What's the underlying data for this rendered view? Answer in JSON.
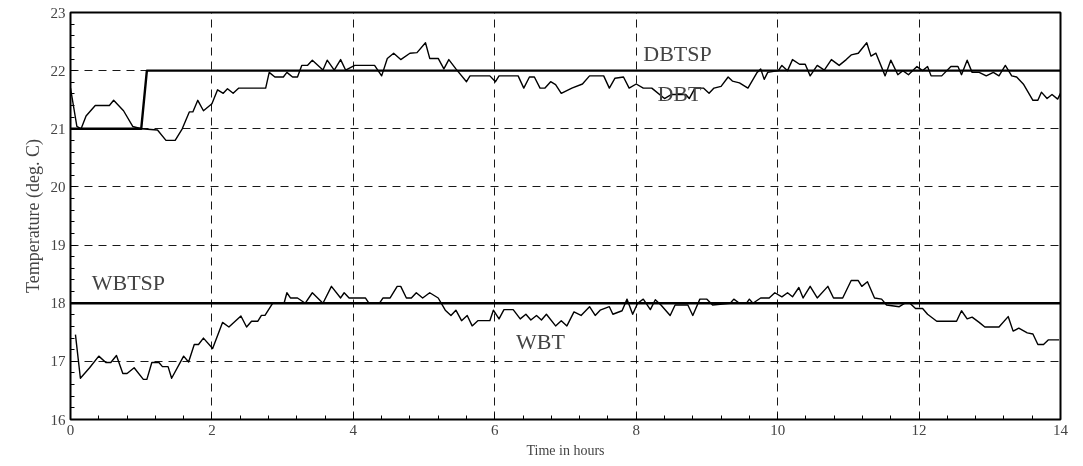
{
  "chart_data": {
    "type": "line",
    "xlabel": "Time in hours",
    "ylabel": "Temperature (deg. C)",
    "xlim": [
      0,
      14
    ],
    "ylim": [
      16,
      23
    ],
    "xticks": [
      0,
      2,
      4,
      6,
      8,
      10,
      12,
      14
    ],
    "yticks": [
      16,
      17,
      18,
      19,
      20,
      21,
      22,
      23
    ],
    "grid": true,
    "marker": "none",
    "line_style": "solid",
    "series": [
      {
        "name": "DBT",
        "color": "#000000",
        "x": [
          0,
          0.09,
          0.15,
          0.22,
          0.35,
          0.55,
          0.61,
          0.75,
          0.88,
          1.0,
          1.23,
          1.35,
          1.48,
          1.58,
          1.68,
          1.73,
          1.8,
          1.88,
          2.0,
          2.08,
          2.16,
          2.22,
          2.3,
          2.38,
          2.76,
          2.81,
          2.89,
          3.01,
          3.06,
          3.14,
          3.21,
          3.27,
          3.35,
          3.42,
          3.57,
          3.63,
          3.73,
          3.82,
          3.89,
          4.02,
          4.3,
          4.4,
          4.48,
          4.57,
          4.67,
          4.8,
          4.9,
          5.02,
          5.08,
          5.2,
          5.28,
          5.35,
          5.45,
          5.6,
          5.65,
          5.93,
          6.01,
          6.06,
          6.33,
          6.41,
          6.49,
          6.56,
          6.64,
          6.71,
          6.79,
          6.86,
          6.94,
          7.09,
          7.24,
          7.34,
          7.54,
          7.62,
          7.7,
          7.82,
          7.9,
          8.0,
          8.1,
          8.22,
          8.4,
          8.5,
          8.7,
          8.75,
          8.83,
          8.95,
          9.03,
          9.1,
          9.2,
          9.3,
          9.36,
          9.46,
          9.58,
          9.71,
          9.76,
          9.81,
          9.86,
          10.01,
          10.06,
          10.14,
          10.21,
          10.31,
          10.39,
          10.46,
          10.56,
          10.66,
          10.76,
          10.87,
          10.97,
          11.04,
          11.14,
          11.26,
          11.32,
          11.39,
          11.52,
          11.6,
          11.7,
          11.77,
          11.85,
          11.97,
          12.05,
          12.12,
          12.17,
          12.32,
          12.45,
          12.55,
          12.6,
          12.68,
          12.75,
          12.85,
          12.95,
          13.05,
          13.13,
          13.22,
          13.31,
          13.38,
          13.48,
          13.61,
          13.68,
          13.73,
          13.81,
          13.88,
          13.96,
          14.0
        ],
        "values": [
          21.7,
          21.04,
          21.0,
          21.22,
          21.4,
          21.4,
          21.49,
          21.31,
          21.04,
          21.0,
          20.98,
          20.8,
          20.8,
          21.0,
          21.29,
          21.29,
          21.49,
          21.31,
          21.43,
          21.67,
          21.61,
          21.69,
          21.61,
          21.7,
          21.7,
          21.97,
          21.89,
          21.89,
          21.97,
          21.89,
          21.89,
          22.09,
          22.09,
          22.18,
          22.01,
          22.18,
          22.01,
          22.19,
          22.01,
          22.09,
          22.09,
          21.91,
          22.21,
          22.3,
          22.19,
          22.3,
          22.31,
          22.48,
          22.21,
          22.21,
          22.03,
          22.19,
          22.03,
          21.81,
          21.91,
          21.91,
          21.81,
          21.91,
          21.91,
          21.7,
          21.89,
          21.89,
          21.7,
          21.7,
          21.81,
          21.76,
          21.61,
          21.7,
          21.77,
          21.91,
          21.91,
          21.7,
          21.87,
          21.89,
          21.7,
          21.77,
          21.7,
          21.7,
          21.52,
          21.59,
          21.59,
          21.52,
          21.7,
          21.7,
          21.61,
          21.7,
          21.73,
          21.89,
          21.82,
          21.79,
          21.7,
          21.97,
          22.03,
          21.85,
          21.97,
          22.0,
          22.09,
          22.0,
          22.19,
          22.11,
          22.11,
          21.91,
          22.09,
          22.01,
          22.19,
          22.09,
          22.19,
          22.27,
          22.3,
          22.48,
          22.25,
          22.3,
          21.91,
          22.18,
          21.93,
          22.0,
          21.93,
          22.07,
          22.0,
          22.07,
          21.91,
          21.91,
          22.07,
          22.07,
          21.93,
          22.18,
          21.97,
          21.97,
          21.91,
          21.97,
          21.91,
          22.09,
          21.91,
          21.89,
          21.76,
          21.49,
          21.49,
          21.63,
          21.52,
          21.59,
          21.51,
          21.61
        ]
      },
      {
        "name": "DBTSP",
        "color": "#000000",
        "x": [
          0,
          1.0,
          1.08,
          14
        ],
        "values": [
          21,
          21,
          22,
          22
        ]
      },
      {
        "name": "WBT",
        "color": "#000000",
        "x": [
          0.07,
          0.14,
          0.27,
          0.4,
          0.5,
          0.57,
          0.65,
          0.74,
          0.8,
          0.9,
          1.03,
          1.08,
          1.15,
          1.25,
          1.3,
          1.38,
          1.43,
          1.6,
          1.67,
          1.75,
          1.81,
          1.88,
          2.01,
          2.15,
          2.24,
          2.41,
          2.49,
          2.56,
          2.65,
          2.7,
          2.75,
          2.86,
          3.02,
          3.06,
          3.11,
          3.21,
          3.32,
          3.42,
          3.57,
          3.69,
          3.82,
          3.87,
          3.94,
          4.17,
          4.22,
          4.37,
          4.42,
          4.52,
          4.62,
          4.67,
          4.75,
          4.82,
          4.89,
          4.98,
          5.08,
          5.2,
          5.3,
          5.38,
          5.45,
          5.53,
          5.61,
          5.68,
          5.76,
          5.93,
          5.98,
          6.06,
          6.13,
          6.26,
          6.36,
          6.44,
          6.51,
          6.59,
          6.66,
          6.73,
          6.86,
          6.94,
          7.02,
          7.12,
          7.22,
          7.34,
          7.42,
          7.49,
          7.62,
          7.67,
          7.8,
          7.87,
          7.95,
          8.02,
          8.1,
          8.2,
          8.27,
          8.35,
          8.48,
          8.55,
          8.73,
          8.8,
          8.9,
          9.0,
          9.08,
          9.33,
          9.38,
          9.46,
          9.56,
          9.6,
          9.65,
          9.76,
          9.88,
          9.96,
          10.06,
          10.14,
          10.21,
          10.3,
          10.36,
          10.46,
          10.56,
          10.71,
          10.79,
          10.92,
          11.04,
          11.14,
          11.19,
          11.27,
          11.37,
          11.47,
          11.54,
          11.72,
          11.8,
          11.87,
          11.95,
          12.05,
          12.12,
          12.25,
          12.53,
          12.6,
          12.68,
          12.75,
          12.85,
          12.93,
          13.13,
          13.26,
          13.33,
          13.41,
          13.53,
          13.61,
          13.68,
          13.76,
          13.83,
          13.91,
          13.98
        ],
        "values": [
          17.46,
          16.71,
          16.89,
          17.09,
          16.98,
          16.98,
          17.1,
          16.79,
          16.79,
          16.89,
          16.69,
          16.69,
          16.98,
          16.98,
          16.91,
          16.91,
          16.71,
          17.09,
          16.99,
          17.29,
          17.29,
          17.4,
          17.22,
          17.67,
          17.59,
          17.78,
          17.59,
          17.69,
          17.69,
          17.79,
          17.79,
          18.0,
          18.0,
          18.18,
          18.09,
          18.09,
          18.0,
          18.18,
          18.0,
          18.29,
          18.09,
          18.18,
          18.09,
          18.09,
          18.0,
          18.0,
          18.09,
          18.09,
          18.29,
          18.29,
          18.09,
          18.09,
          18.18,
          18.09,
          18.18,
          18.09,
          17.88,
          17.79,
          17.88,
          17.7,
          17.79,
          17.61,
          17.7,
          17.7,
          17.88,
          17.73,
          17.89,
          17.89,
          17.73,
          17.81,
          17.71,
          17.79,
          17.71,
          17.81,
          17.61,
          17.7,
          17.61,
          17.85,
          17.79,
          17.94,
          17.79,
          17.88,
          17.94,
          17.81,
          17.87,
          18.07,
          17.81,
          18.0,
          18.07,
          17.89,
          18.06,
          17.97,
          17.79,
          17.97,
          17.97,
          17.79,
          18.07,
          18.07,
          17.97,
          18.0,
          18.07,
          18.0,
          18.0,
          18.07,
          18.0,
          18.09,
          18.09,
          18.18,
          18.11,
          18.18,
          18.11,
          18.27,
          18.09,
          18.29,
          18.09,
          18.29,
          18.09,
          18.09,
          18.39,
          18.39,
          18.29,
          18.37,
          18.09,
          18.07,
          17.97,
          17.94,
          18.0,
          18.0,
          17.91,
          17.91,
          17.81,
          17.69,
          17.69,
          17.87,
          17.73,
          17.76,
          17.67,
          17.59,
          17.59,
          17.77,
          17.52,
          17.57,
          17.49,
          17.47,
          17.29,
          17.29,
          17.37,
          17.37,
          17.37
        ]
      },
      {
        "name": "WBTSP",
        "color": "#000000",
        "x": [
          0,
          14
        ],
        "values": [
          18,
          18
        ]
      }
    ]
  }
}
